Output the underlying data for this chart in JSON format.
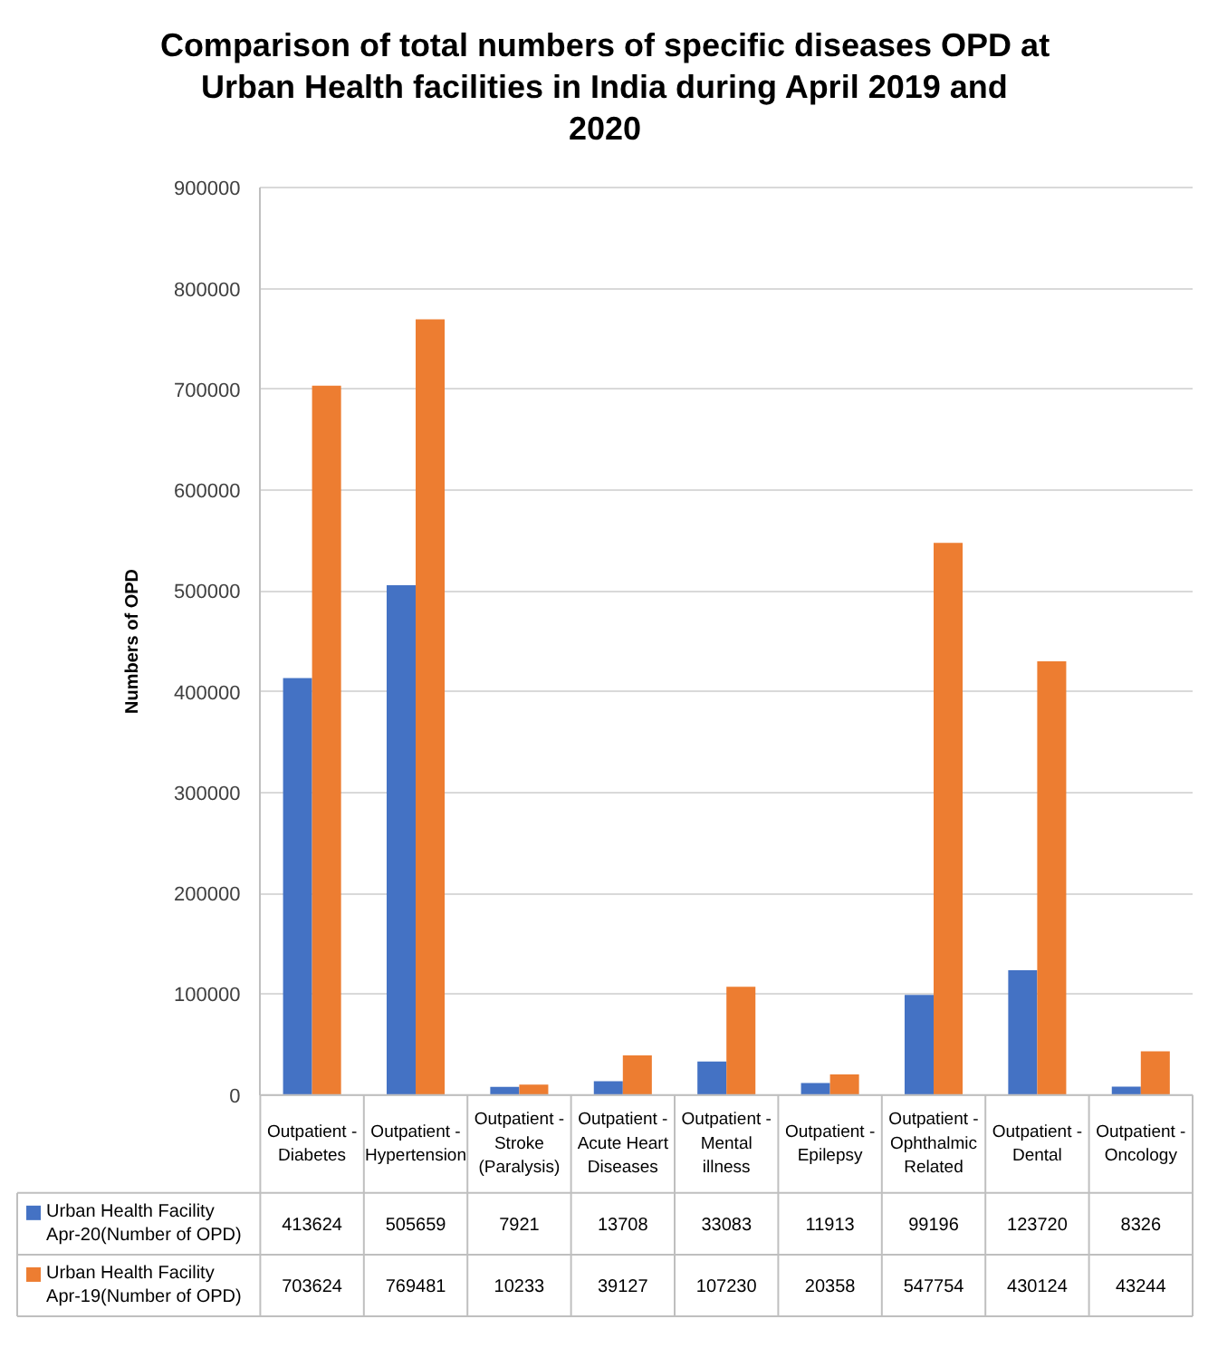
{
  "chart_data": {
    "type": "bar",
    "title": "Comparison of total numbers of specific diseases OPD at Urban Health facilities in India during April 2019 and 2020",
    "ylabel": "Numbers of OPD",
    "categories": [
      "Outpatient - Diabetes",
      "Outpatient - Hypertension",
      "Outpatient - Stroke (Paralysis)",
      "Outpatient - Acute Heart Diseases",
      "Outpatient - Mental illness",
      "Outpatient - Epilepsy",
      "Outpatient - Ophthalmic Related",
      "Outpatient - Dental",
      "Outpatient - Oncology"
    ],
    "series": [
      {
        "name": "Urban Health Facility Apr-20(Number of OPD)",
        "color": "#4472c4",
        "values": [
          413624,
          505659,
          7921,
          13708,
          33083,
          11913,
          99196,
          123720,
          8326
        ]
      },
      {
        "name": "Urban Health Facility Apr-19(Number of OPD)",
        "color": "#ed7d31",
        "values": [
          703624,
          769481,
          10233,
          39127,
          107230,
          20358,
          547754,
          430124,
          43244
        ]
      }
    ],
    "ylim": [
      0,
      900000
    ],
    "yticks": [
      0,
      100000,
      200000,
      300000,
      400000,
      500000,
      600000,
      700000,
      800000,
      900000
    ],
    "grid": "y",
    "legend": "bottom",
    "data_labels": true
  }
}
